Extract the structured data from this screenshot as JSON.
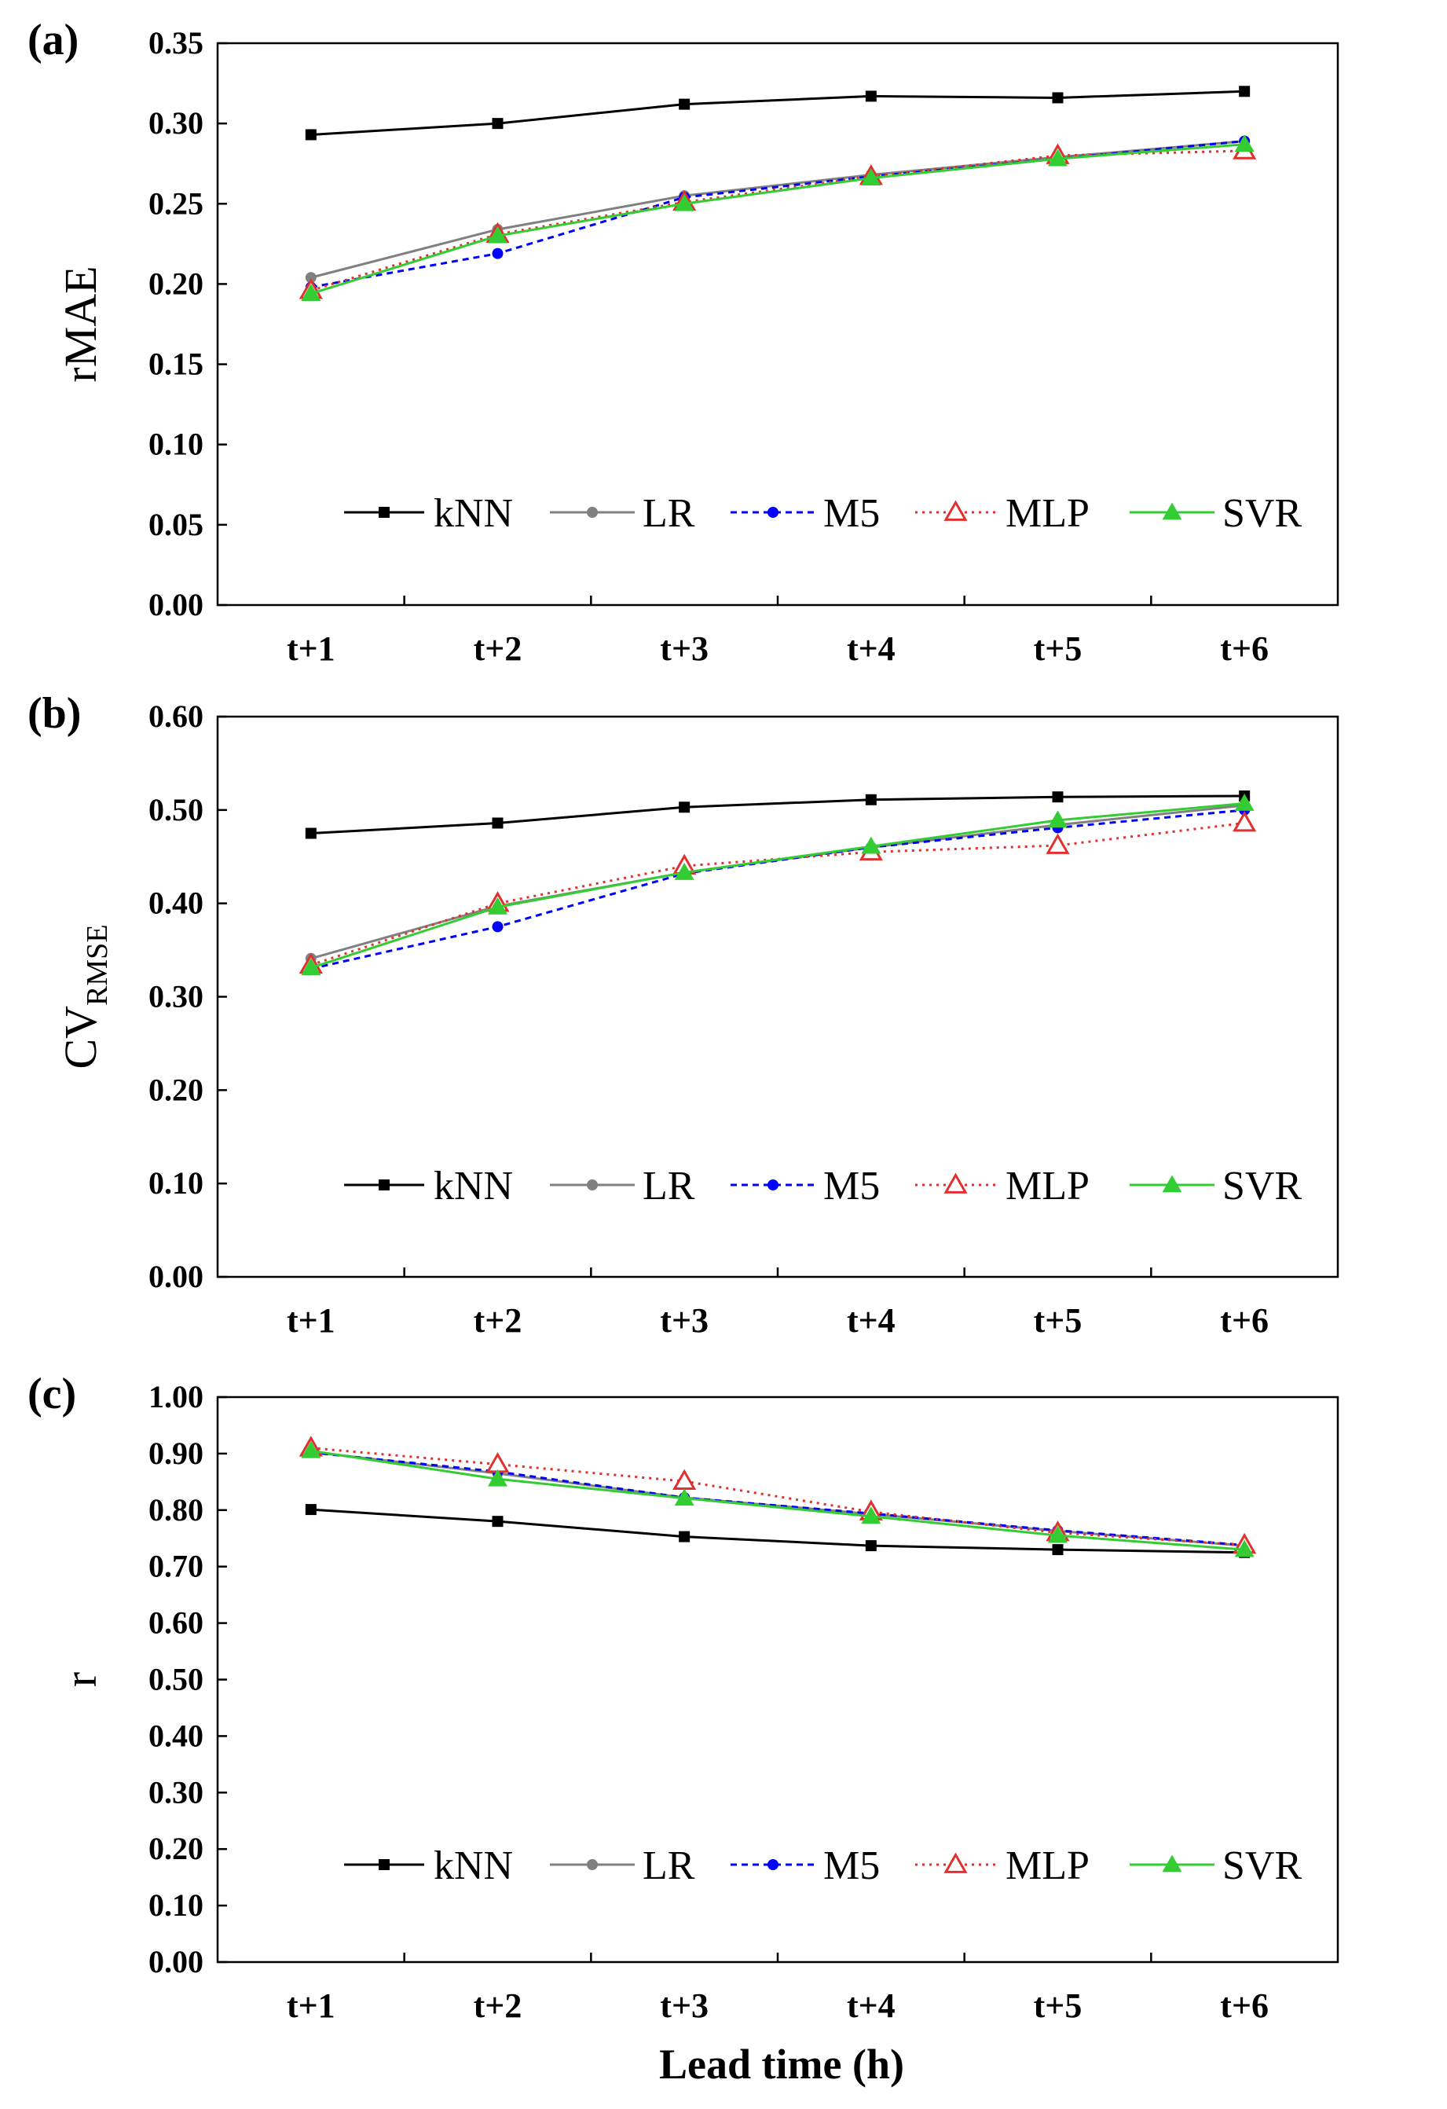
{
  "figure": {
    "xlabel": "Lead time (h)"
  },
  "chart_data": [
    {
      "type": "line",
      "panel_label": "(a)",
      "ylabel": "rMAE",
      "ylabel_sub": "",
      "ylim": [
        0,
        0.35
      ],
      "yticks": [
        "0.00",
        "0.05",
        "0.10",
        "0.15",
        "0.20",
        "0.25",
        "0.30",
        "0.35"
      ],
      "categories": [
        "t+1",
        "t+2",
        "t+3",
        "t+4",
        "t+5",
        "t+6"
      ],
      "legend_position": "bottom",
      "series": [
        {
          "name": "kNN",
          "color": "#000000",
          "dash": "",
          "marker": "square",
          "values": [
            0.293,
            0.3,
            0.312,
            0.317,
            0.316,
            0.32
          ]
        },
        {
          "name": "LR",
          "color": "#808080",
          "dash": "",
          "marker": "circle",
          "values": [
            0.204,
            0.234,
            0.255,
            0.268,
            0.279,
            0.289
          ]
        },
        {
          "name": "M5",
          "color": "#0000ff",
          "dash": "8,6",
          "marker": "circle",
          "values": [
            0.198,
            0.219,
            0.254,
            0.267,
            0.278,
            0.289
          ]
        },
        {
          "name": "MLP",
          "color": "#e03030",
          "dash": "3,6",
          "marker": "triangle-open",
          "values": [
            0.196,
            0.231,
            0.251,
            0.267,
            0.28,
            0.283
          ]
        },
        {
          "name": "SVR",
          "color": "#33cc33",
          "dash": "",
          "marker": "triangle",
          "values": [
            0.194,
            0.23,
            0.25,
            0.266,
            0.278,
            0.287
          ]
        }
      ]
    },
    {
      "type": "line",
      "panel_label": "(b)",
      "ylabel": "CV",
      "ylabel_sub": "RMSE",
      "ylim": [
        0,
        0.6
      ],
      "yticks": [
        "0.00",
        "0.10",
        "0.20",
        "0.30",
        "0.40",
        "0.50",
        "0.60"
      ],
      "categories": [
        "t+1",
        "t+2",
        "t+3",
        "t+4",
        "t+5",
        "t+6"
      ],
      "legend_position": "bottom",
      "series": [
        {
          "name": "kNN",
          "color": "#000000",
          "dash": "",
          "marker": "square",
          "values": [
            0.475,
            0.486,
            0.503,
            0.511,
            0.514,
            0.515
          ]
        },
        {
          "name": "LR",
          "color": "#808080",
          "dash": "",
          "marker": "circle",
          "values": [
            0.341,
            0.397,
            0.433,
            0.46,
            0.484,
            0.505
          ]
        },
        {
          "name": "M5",
          "color": "#0000ff",
          "dash": "8,6",
          "marker": "circle",
          "values": [
            0.33,
            0.375,
            0.432,
            0.46,
            0.481,
            0.5
          ]
        },
        {
          "name": "MLP",
          "color": "#e03030",
          "dash": "3,6",
          "marker": "triangle-open",
          "values": [
            0.334,
            0.4,
            0.44,
            0.455,
            0.462,
            0.486
          ]
        },
        {
          "name": "SVR",
          "color": "#33cc33",
          "dash": "",
          "marker": "triangle",
          "values": [
            0.331,
            0.396,
            0.433,
            0.461,
            0.489,
            0.507
          ]
        }
      ]
    },
    {
      "type": "line",
      "panel_label": "(c)",
      "ylabel": "r",
      "ylabel_sub": "",
      "ylim": [
        0,
        1.0
      ],
      "yticks": [
        "0.00",
        "0.10",
        "0.20",
        "0.30",
        "0.40",
        "0.50",
        "0.60",
        "0.70",
        "0.80",
        "0.90",
        "1.00"
      ],
      "categories": [
        "t+1",
        "t+2",
        "t+3",
        "t+4",
        "t+5",
        "t+6"
      ],
      "legend_position": "bottom",
      "series": [
        {
          "name": "kNN",
          "color": "#000000",
          "dash": "",
          "marker": "square",
          "values": [
            0.801,
            0.78,
            0.753,
            0.737,
            0.73,
            0.725
          ]
        },
        {
          "name": "LR",
          "color": "#808080",
          "dash": "",
          "marker": "circle",
          "values": [
            0.903,
            0.865,
            0.822,
            0.793,
            0.763,
            0.737
          ]
        },
        {
          "name": "M5",
          "color": "#0000ff",
          "dash": "8,6",
          "marker": "circle",
          "values": [
            0.902,
            0.868,
            0.822,
            0.794,
            0.764,
            0.738
          ]
        },
        {
          "name": "MLP",
          "color": "#e03030",
          "dash": "3,6",
          "marker": "triangle-open",
          "values": [
            0.91,
            0.881,
            0.851,
            0.797,
            0.76,
            0.738
          ]
        },
        {
          "name": "SVR",
          "color": "#33cc33",
          "dash": "",
          "marker": "triangle",
          "values": [
            0.905,
            0.855,
            0.821,
            0.789,
            0.755,
            0.73
          ]
        }
      ]
    }
  ]
}
